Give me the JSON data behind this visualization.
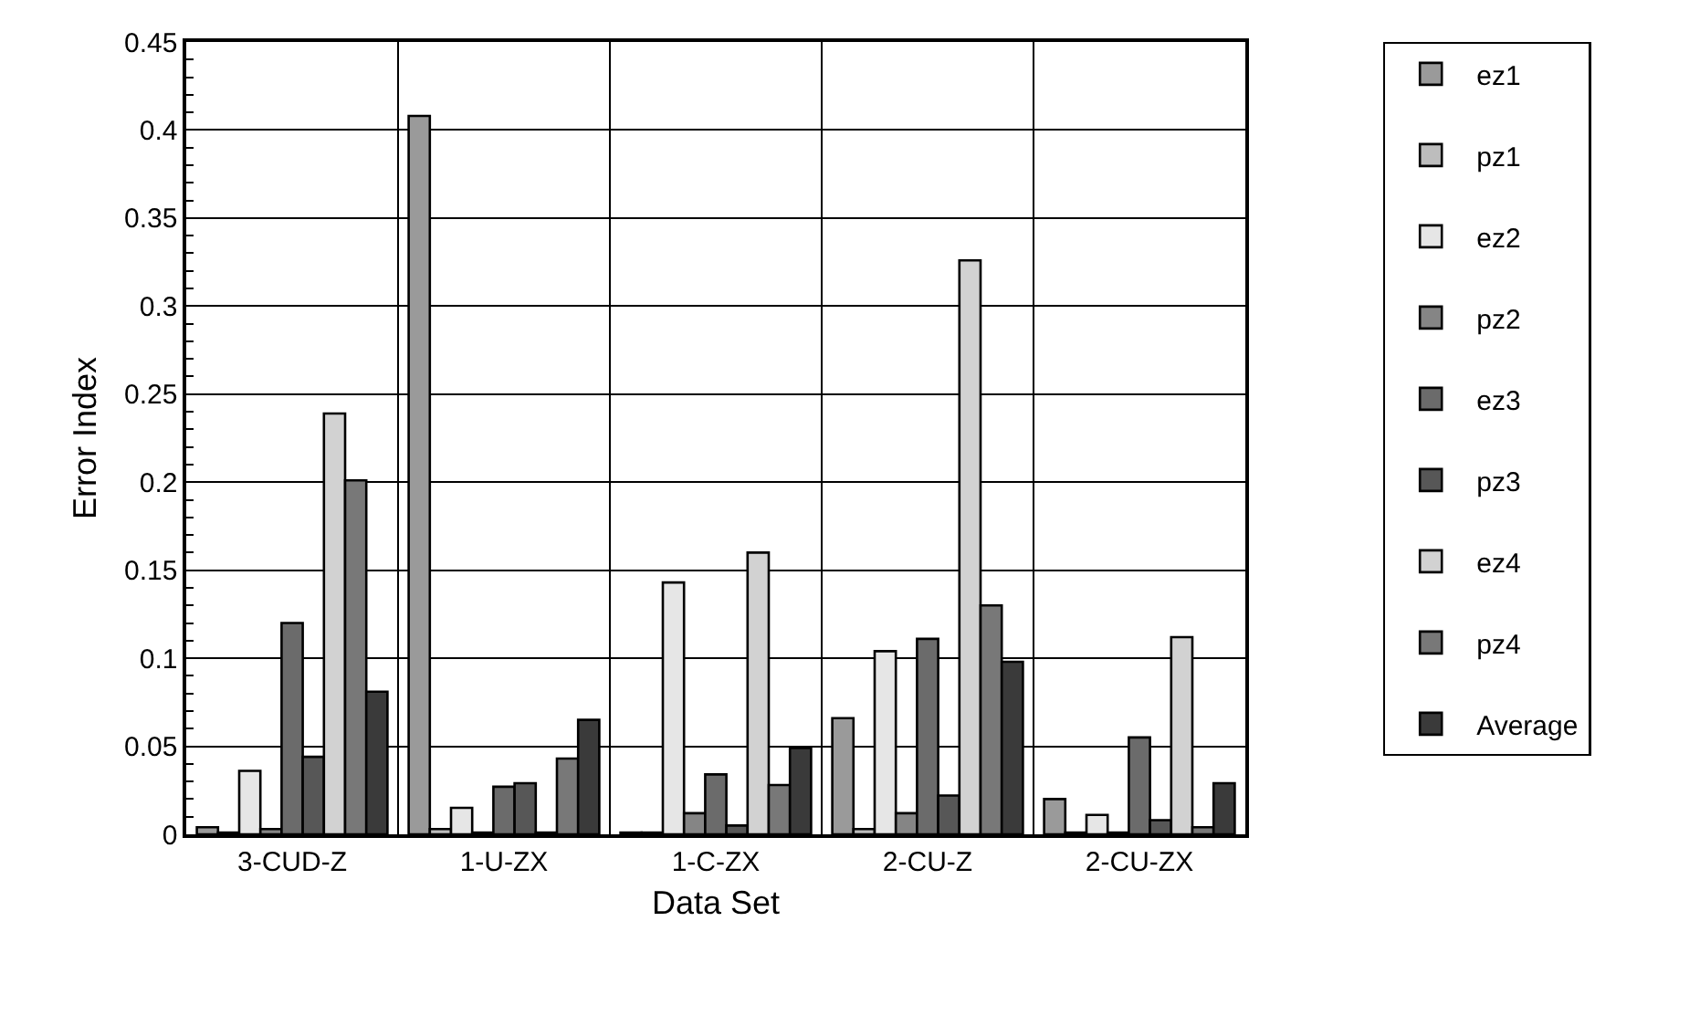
{
  "chart_data": {
    "type": "bar",
    "xlabel": "Data Set",
    "ylabel": "Error Index",
    "categories": [
      "3-CUD-Z",
      "1-U-ZX",
      "1-C-ZX",
      "2-CU-Z",
      "2-CU-ZX"
    ],
    "series": [
      {
        "name": "ez1",
        "color": "#9a9a9a",
        "values": [
          0.004,
          0.408,
          0.001,
          0.066,
          0.02
        ]
      },
      {
        "name": "pz1",
        "color": "#bdbdbd",
        "values": [
          0.001,
          0.003,
          0.001,
          0.003,
          0.001
        ]
      },
      {
        "name": "ez2",
        "color": "#e6e6e6",
        "values": [
          0.036,
          0.015,
          0.143,
          0.104,
          0.011
        ]
      },
      {
        "name": "pz2",
        "color": "#858585",
        "values": [
          0.003,
          0.001,
          0.012,
          0.012,
          0.001
        ]
      },
      {
        "name": "ez3",
        "color": "#6b6b6b",
        "values": [
          0.12,
          0.027,
          0.034,
          0.111,
          0.055
        ]
      },
      {
        "name": "pz3",
        "color": "#575757",
        "values": [
          0.044,
          0.029,
          0.005,
          0.022,
          0.008
        ]
      },
      {
        "name": "ez4",
        "color": "#d2d2d2",
        "values": [
          0.239,
          0.001,
          0.16,
          0.326,
          0.112
        ]
      },
      {
        "name": "pz4",
        "color": "#787878",
        "values": [
          0.201,
          0.043,
          0.028,
          0.13,
          0.004
        ]
      },
      {
        "name": "Average",
        "color": "#3a3a3a",
        "values": [
          0.081,
          0.065,
          0.049,
          0.098,
          0.029
        ]
      }
    ],
    "ylim": [
      0,
      0.45
    ],
    "yticks": [
      0,
      {
        "value": 0.01,
        "label": null
      },
      {
        "value": 0.02,
        "label": null
      },
      {
        "value": 0.03,
        "label": null
      },
      {
        "value": 0.04,
        "label": null
      },
      0.05,
      {
        "value": 0.06,
        "label": null
      },
      {
        "value": 0.07,
        "label": null
      },
      {
        "value": 0.08,
        "label": null
      },
      {
        "value": 0.09,
        "label": null
      },
      0.1,
      {
        "value": 0.11,
        "label": null
      },
      {
        "value": 0.12,
        "label": null
      },
      {
        "value": 0.13,
        "label": null
      },
      {
        "value": 0.14,
        "label": null
      },
      0.15,
      {
        "value": 0.16,
        "label": null
      },
      {
        "value": 0.17,
        "label": null
      },
      {
        "value": 0.18,
        "label": null
      },
      {
        "value": 0.19,
        "label": null
      },
      0.2,
      {
        "value": 0.21,
        "label": null
      },
      {
        "value": 0.22,
        "label": null
      },
      {
        "value": 0.23,
        "label": null
      },
      {
        "value": 0.24,
        "label": null
      },
      0.25,
      {
        "value": 0.26,
        "label": null
      },
      {
        "value": 0.27,
        "label": null
      },
      {
        "value": 0.28,
        "label": null
      },
      {
        "value": 0.29,
        "label": null
      },
      0.3,
      {
        "value": 0.31,
        "label": null
      },
      {
        "value": 0.32,
        "label": null
      },
      {
        "value": 0.33,
        "label": null
      },
      {
        "value": 0.34,
        "label": null
      },
      0.35,
      {
        "value": 0.36,
        "label": null
      },
      {
        "value": 0.37,
        "label": null
      },
      {
        "value": 0.38,
        "label": null
      },
      {
        "value": 0.39,
        "label": null
      },
      0.4,
      {
        "value": 0.41,
        "label": null
      },
      {
        "value": 0.42,
        "label": null
      },
      {
        "value": 0.43,
        "label": null
      },
      {
        "value": 0.44,
        "label": null
      },
      0.45
    ],
    "grid": true,
    "legend": "right"
  }
}
